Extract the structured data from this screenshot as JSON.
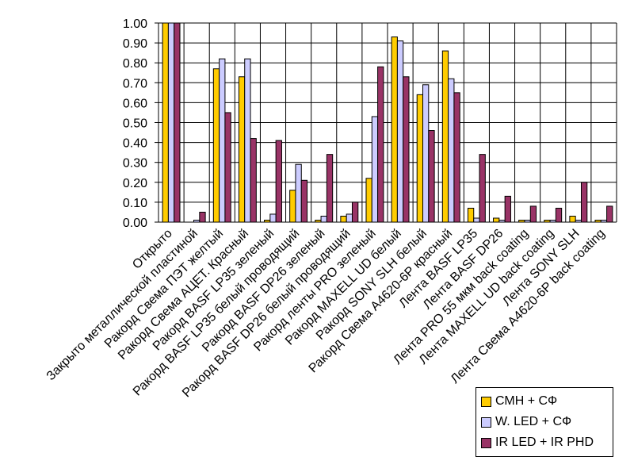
{
  "chart_data": {
    "type": "bar",
    "title": "",
    "xlabel": "",
    "ylabel": "",
    "ylim": [
      0,
      1
    ],
    "yticks": [
      "0.00",
      "0.10",
      "0.20",
      "0.30",
      "0.40",
      "0.50",
      "0.60",
      "0.70",
      "0.80",
      "0.90",
      "1.00"
    ],
    "grid": true,
    "legend_position": "bottom-right",
    "categories": [
      "Открыто",
      "Закрыто металлической пластиной",
      "Ракорд Свема ПЭТ желтый",
      "Ракорд Свема AЦЕТ. Красный",
      "Ракорд BASF LP35 зеленый",
      "Ракорд BASF LP35 белый проводящий",
      "Ракорд BASF DP26 зеленый",
      "Ракорд BASF DP26 белый проводящий",
      "Ракорд ленты PRO зеленый",
      "Ракорд MAXELL UD белый",
      "Ракорд SONY SLH белый",
      "Ракорд Свема А4620-6Р красный",
      "Лента BASF LP35",
      "Лента BASF DP26",
      "Лента PRO 55 мкм back coating",
      "Лента MAXELL UD back coating",
      "Лента SONY SLH",
      "Лента Свема А4620-6Р back coating"
    ],
    "series": [
      {
        "name": "СМН + СФ",
        "color": "#FFCC00",
        "values": [
          1.0,
          0.0,
          0.77,
          0.73,
          0.01,
          0.16,
          0.01,
          0.03,
          0.22,
          0.93,
          0.64,
          0.86,
          0.07,
          0.02,
          0.01,
          0.01,
          0.03,
          0.01
        ]
      },
      {
        "name": "W. LED + СФ",
        "color": "#CCCCFF",
        "values": [
          1.0,
          0.01,
          0.82,
          0.82,
          0.04,
          0.29,
          0.03,
          0.04,
          0.53,
          0.91,
          0.69,
          0.72,
          0.02,
          0.01,
          0.01,
          0.01,
          0.01,
          0.01
        ]
      },
      {
        "name": "IR LED + IR PHD",
        "color": "#993366",
        "values": [
          1.0,
          0.05,
          0.55,
          0.42,
          0.41,
          0.21,
          0.34,
          0.1,
          0.78,
          0.73,
          0.46,
          0.65,
          0.34,
          0.13,
          0.08,
          0.07,
          0.2,
          0.08
        ]
      }
    ]
  }
}
